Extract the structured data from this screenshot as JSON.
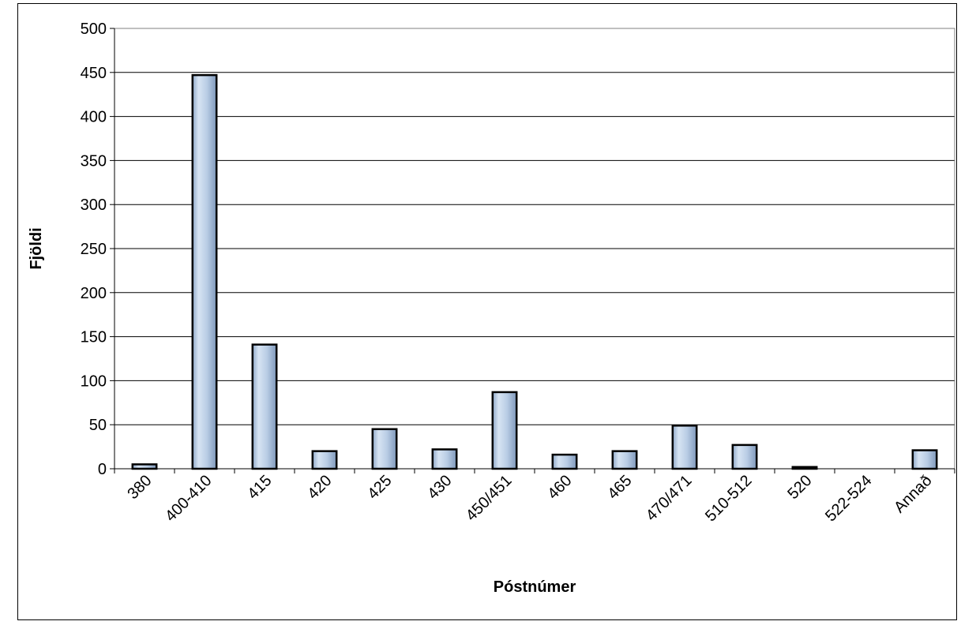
{
  "chart_data": {
    "type": "bar",
    "title": "",
    "xlabel": "Póstnúmer",
    "ylabel": "Fjöldi",
    "ylim": [
      0,
      500
    ],
    "yticks": [
      0,
      50,
      100,
      150,
      200,
      250,
      300,
      350,
      400,
      450,
      500
    ],
    "grid": true,
    "legend": "none",
    "categories": [
      "380",
      "400-410",
      "415",
      "420",
      "425",
      "430",
      "450/451",
      "460",
      "465",
      "470/471",
      "510-512",
      "520",
      "522-524",
      "Annað"
    ],
    "values": [
      5,
      447,
      141,
      20,
      45,
      22,
      87,
      16,
      20,
      49,
      27,
      2,
      0,
      21
    ],
    "colors": {
      "bar_fill": "#b9cde5",
      "bar_stroke": "#000000",
      "grid": "#000000",
      "plot_border": "#808080"
    }
  }
}
